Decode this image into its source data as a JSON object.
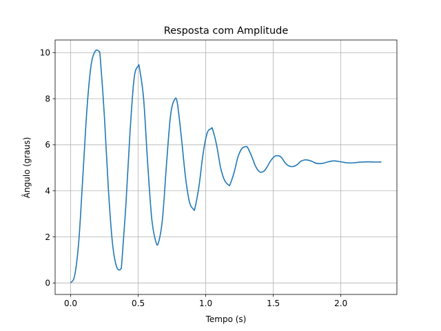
{
  "chart_data": {
    "type": "line",
    "title": "Resposta com Amplitude",
    "xlabel": "Tempo (s)",
    "ylabel": "Ângulo (graus)",
    "xlim": [
      -0.115,
      2.415
    ],
    "ylim": [
      -0.5,
      10.55
    ],
    "xticks": [
      0.0,
      0.5,
      1.0,
      1.5,
      2.0
    ],
    "xtick_labels": [
      "0.0",
      "0.5",
      "1.0",
      "1.5",
      "2.0"
    ],
    "yticks": [
      0,
      2,
      4,
      6,
      8,
      10
    ],
    "ytick_labels": [
      "0",
      "2",
      "4",
      "6",
      "8",
      "10"
    ],
    "grid": true,
    "series": [
      {
        "color": "#1f77b4",
        "x": [
          0.0,
          0.03,
          0.06,
          0.09,
          0.12,
          0.15,
          0.18,
          0.21,
          0.22,
          0.25,
          0.28,
          0.31,
          0.34,
          0.37,
          0.38,
          0.41,
          0.44,
          0.47,
          0.5,
          0.51,
          0.54,
          0.57,
          0.6,
          0.63,
          0.65,
          0.68,
          0.71,
          0.74,
          0.77,
          0.79,
          0.82,
          0.85,
          0.88,
          0.91,
          0.92,
          0.95,
          0.98,
          1.01,
          1.04,
          1.05,
          1.08,
          1.11,
          1.14,
          1.17,
          1.18,
          1.21,
          1.24,
          1.27,
          1.3,
          1.31,
          1.34,
          1.37,
          1.4,
          1.43,
          1.45,
          1.48,
          1.51,
          1.54,
          1.56,
          1.59,
          1.62,
          1.65,
          1.68,
          1.7,
          1.73,
          1.76,
          1.79,
          1.81,
          1.84,
          1.87,
          1.9,
          1.93,
          1.95,
          1.98,
          2.01,
          2.04,
          2.07,
          2.1,
          2.13,
          2.16,
          2.2,
          2.24,
          2.28,
          2.3
        ],
        "y": [
          0.0,
          0.33,
          1.8,
          4.6,
          7.5,
          9.4,
          10.05,
          10.05,
          9.7,
          7.2,
          4.0,
          1.7,
          0.7,
          0.6,
          1.0,
          3.5,
          6.6,
          8.9,
          9.42,
          9.3,
          8.0,
          5.2,
          2.8,
          1.8,
          1.75,
          2.8,
          5.2,
          7.3,
          7.97,
          7.8,
          6.3,
          4.6,
          3.5,
          3.2,
          3.25,
          4.2,
          5.6,
          6.5,
          6.7,
          6.68,
          6.0,
          5.0,
          4.45,
          4.25,
          4.28,
          4.8,
          5.5,
          5.85,
          5.92,
          5.88,
          5.5,
          5.05,
          4.82,
          4.85,
          5.0,
          5.3,
          5.5,
          5.52,
          5.45,
          5.2,
          5.07,
          5.06,
          5.15,
          5.27,
          5.34,
          5.33,
          5.27,
          5.21,
          5.18,
          5.2,
          5.25,
          5.29,
          5.3,
          5.28,
          5.25,
          5.22,
          5.21,
          5.22,
          5.24,
          5.25,
          5.26,
          5.25,
          5.25,
          5.25
        ]
      }
    ]
  }
}
